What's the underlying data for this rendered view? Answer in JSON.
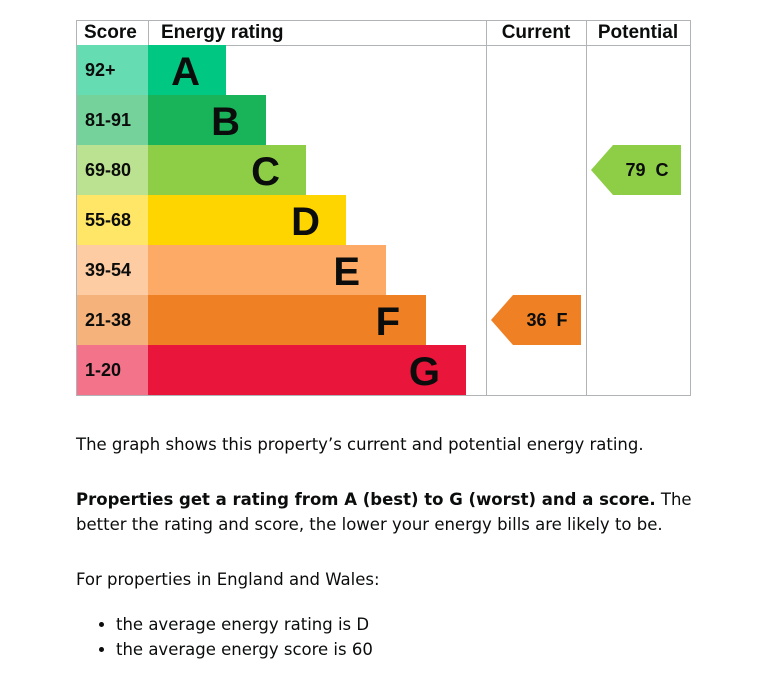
{
  "chart_data": {
    "type": "table",
    "headers": {
      "score": "Score",
      "rating": "Energy rating",
      "current": "Current",
      "potential": "Potential"
    },
    "bands": [
      {
        "letter": "A",
        "range": "92+",
        "color": "#00c781",
        "score_bg": "#66dcb3"
      },
      {
        "letter": "B",
        "range": "81-91",
        "color": "#19b459",
        "score_bg": "#75d29b"
      },
      {
        "letter": "C",
        "range": "69-80",
        "color": "#8dce46",
        "score_bg": "#bbe290"
      },
      {
        "letter": "D",
        "range": "55-68",
        "color": "#ffd500",
        "score_bg": "#ffe666"
      },
      {
        "letter": "E",
        "range": "39-54",
        "color": "#fcaa65",
        "score_bg": "#fdcca3"
      },
      {
        "letter": "F",
        "range": "21-38",
        "color": "#ef8023",
        "score_bg": "#f5b37b"
      },
      {
        "letter": "G",
        "range": "1-20",
        "color": "#e9153b",
        "score_bg": "#f2738a"
      }
    ],
    "current": {
      "score": 36,
      "letter": "F",
      "color": "#ef8023"
    },
    "potential": {
      "score": 79,
      "letter": "C",
      "color": "#8dce46"
    }
  },
  "description": {
    "line1": "The graph shows this property’s current and potential energy rating.",
    "bold": "Properties get a rating from A (best) to G (worst) and a score.",
    "rest": " The better the rating and score, the lower your energy bills are likely to be.",
    "intro": "For properties in England and Wales:",
    "bullets": [
      "the average energy rating is D",
      "the average energy score is 60"
    ]
  }
}
